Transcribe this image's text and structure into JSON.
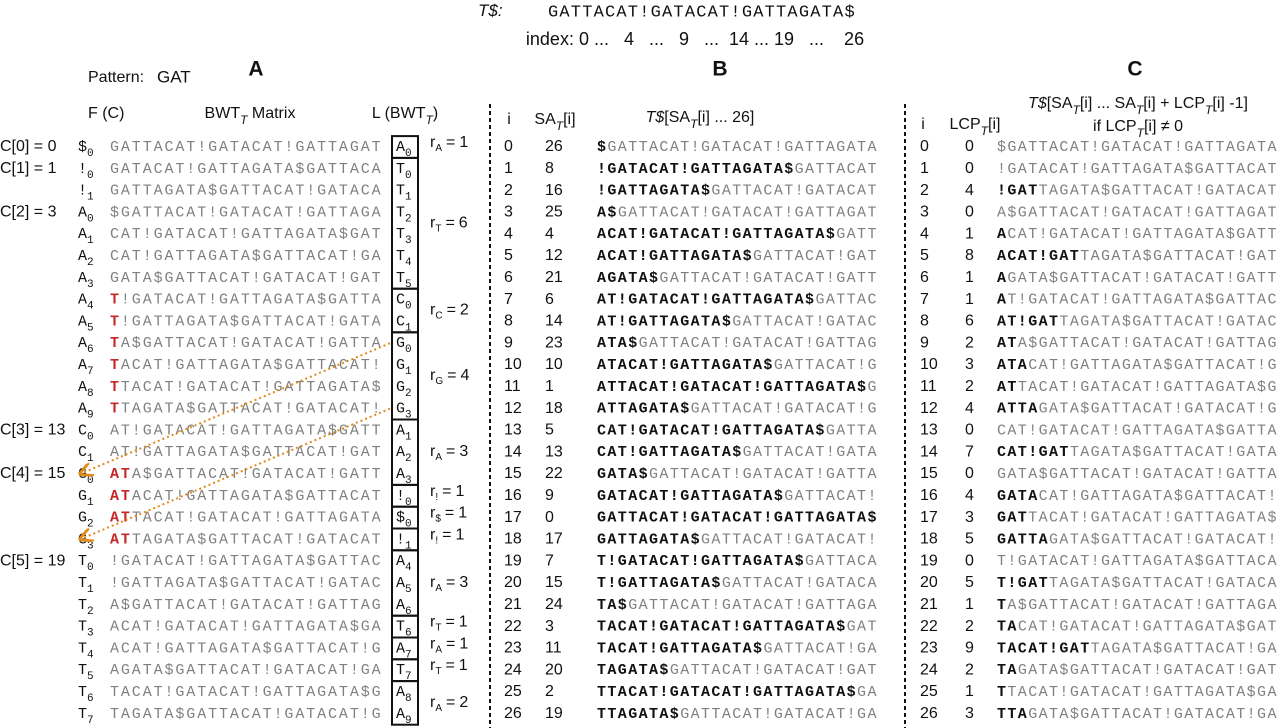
{
  "header": {
    "label": [
      {
        "text": "T$:",
        "italic": true
      }
    ],
    "text": "GATTACAT!GATACAT!GATTAGATA$",
    "index": "index: 0 ...   4   ...   9   ...  14 ... 19   ...    26"
  },
  "panel_a": {
    "letter": "A",
    "pattern_label": "Pattern:",
    "pattern": "GAT",
    "pattern_color": "#d9541e",
    "match_color": "#c62828",
    "headers": [
      [
        {
          "text": "F (C)"
        }
      ],
      [
        {
          "text": "BWT"
        },
        {
          "text": "T",
          "sub": true
        },
        {
          "text": " Matrix"
        }
      ],
      [
        {
          "text": "L (BWT"
        },
        {
          "text": "T",
          "sub": true
        },
        {
          "text": ")"
        }
      ]
    ],
    "run_symbol": "r",
    "equals": "=",
    "runs": [
      {
        "sub": "A",
        "count": 1
      },
      {
        "sub": "T",
        "count": 6
      },
      {
        "sub": "C",
        "count": 2
      },
      {
        "sub": "G",
        "count": 4
      },
      {
        "sub": "A",
        "count": 3
      },
      {
        "sub": "!",
        "count": 1
      },
      {
        "sub": "$",
        "count": 1
      },
      {
        "sub": "!",
        "count": 1
      },
      {
        "sub": "A",
        "count": 3
      },
      {
        "sub": "T",
        "count": 1
      },
      {
        "sub": "A",
        "count": 1
      },
      {
        "sub": "T",
        "count": 1
      },
      {
        "sub": "A",
        "count": 2
      }
    ],
    "arrow_color": "#e08a1a",
    "rows": [
      {
        "c": "C[0] = 0",
        "f": "$",
        "fs": "0",
        "rest": "GATTACAT!GATACAT!GATTAGAT",
        "l": "A",
        "ls": "0"
      },
      {
        "c": "C[1] = 1",
        "f": "!",
        "fs": "0",
        "rest": "GATACAT!GATTAGATA$GATTACA",
        "l": "T",
        "ls": "0"
      },
      {
        "f": "!",
        "fs": "1",
        "rest": "GATTAGATA$GATTACAT!GATACA",
        "l": "T",
        "ls": "1"
      },
      {
        "c": "C[2] = 3",
        "f": "A",
        "fs": "0",
        "rest": "$GATTACAT!GATACAT!GATTAGA",
        "l": "T",
        "ls": "2"
      },
      {
        "f": "A",
        "fs": "1",
        "rest": "CAT!GATACAT!GATTAGATA$GAT",
        "l": "T",
        "ls": "3"
      },
      {
        "f": "A",
        "fs": "2",
        "rest": "CAT!GATTAGATA$GATTACAT!GA",
        "l": "T",
        "ls": "4"
      },
      {
        "f": "A",
        "fs": "3",
        "rest": "GATA$GATTACAT!GATACAT!GAT",
        "l": "T",
        "ls": "5"
      },
      {
        "f": "A",
        "fs": "4",
        "f_color": "#c62828",
        "match": "T",
        "rest": "!GATACAT!GATTAGATA$GATTA",
        "l": "C",
        "ls": "0"
      },
      {
        "f": "A",
        "fs": "5",
        "f_color": "#c62828",
        "match": "T",
        "rest": "!GATTAGATA$GATTACAT!GATA",
        "l": "C",
        "ls": "1"
      },
      {
        "f": "A",
        "fs": "6",
        "f_color": "#c62828",
        "match": "T",
        "rest": "A$GATTACAT!GATACAT!GATTA",
        "l": "G",
        "ls": "0",
        "l_color": "#e08a1a"
      },
      {
        "f": "A",
        "fs": "7",
        "f_color": "#c62828",
        "match": "T",
        "rest": "ACAT!GATTAGATA$GATTACAT!",
        "l": "G",
        "ls": "1",
        "l_color": "#e08a1a"
      },
      {
        "f": "A",
        "fs": "8",
        "f_color": "#c62828",
        "match": "T",
        "rest": "TACAT!GATACAT!GATTAGATA$",
        "l": "G",
        "ls": "2",
        "l_color": "#e08a1a"
      },
      {
        "f": "A",
        "fs": "9",
        "f_color": "#c62828",
        "match": "T",
        "rest": "TAGATA$GATTACAT!GATACAT!",
        "l": "G",
        "ls": "3",
        "l_color": "#e08a1a"
      },
      {
        "c": "C[3] = 13",
        "f": "C",
        "fs": "0",
        "rest": "AT!GATACAT!GATTAGATA$GATT",
        "l": "A",
        "ls": "1"
      },
      {
        "f": "C",
        "fs": "1",
        "rest": "AT!GATTAGATA$GATTACAT!GAT",
        "l": "A",
        "ls": "2"
      },
      {
        "c": "C[4] = 15",
        "f": "G",
        "fs": "0",
        "f_color": "#e08a1a",
        "match": "AT",
        "rest": "A$GATTACAT!GATACAT!GATT",
        "l": "A",
        "ls": "3"
      },
      {
        "f": "G",
        "fs": "1",
        "f_color": "#e08a1a",
        "match": "AT",
        "rest": "ACAT!GATTAGATA$GATTACAT",
        "l": "!",
        "ls": "0"
      },
      {
        "f": "G",
        "fs": "2",
        "f_color": "#e08a1a",
        "match": "AT",
        "rest": "TACAT!GATACAT!GATTAGATA",
        "l": "$",
        "ls": "0"
      },
      {
        "f": "G",
        "fs": "3",
        "f_color": "#e08a1a",
        "match": "AT",
        "rest": "TAGATA$GATTACAT!GATACAT",
        "l": "!",
        "ls": "1"
      },
      {
        "c": "C[5] = 19",
        "f": "T",
        "fs": "0",
        "rest": "!GATACAT!GATTAGATA$GATTAC",
        "l": "A",
        "ls": "4"
      },
      {
        "f": "T",
        "fs": "1",
        "rest": "!GATTAGATA$GATTACAT!GATAC",
        "l": "A",
        "ls": "5"
      },
      {
        "f": "T",
        "fs": "2",
        "rest": "A$GATTACAT!GATACAT!GATTAG",
        "l": "A",
        "ls": "6"
      },
      {
        "f": "T",
        "fs": "3",
        "rest": "ACAT!GATACAT!GATTAGATA$GA",
        "l": "T",
        "ls": "6"
      },
      {
        "f": "T",
        "fs": "4",
        "rest": "ACAT!GATTAGATA$GATTACAT!G",
        "l": "A",
        "ls": "7"
      },
      {
        "f": "T",
        "fs": "5",
        "rest": "AGATA$GATTACAT!GATACAT!GA",
        "l": "T",
        "ls": "7"
      },
      {
        "f": "T",
        "fs": "6",
        "rest": "TACAT!GATACAT!GATTAGATA$G",
        "l": "A",
        "ls": "8"
      },
      {
        "f": "T",
        "fs": "7",
        "rest": "TAGATA$GATTACAT!GATACAT!G",
        "l": "A",
        "ls": "9"
      }
    ]
  },
  "panel_b": {
    "letter": "B",
    "headers": [
      [
        {
          "text": "i"
        }
      ],
      [
        {
          "text": "SA"
        },
        {
          "text": "T",
          "sub": true
        },
        {
          "text": "[i]"
        }
      ],
      [
        {
          "text": "T$",
          "italic": true
        },
        {
          "text": "[SA"
        },
        {
          "text": "T",
          "sub": true
        },
        {
          "text": "[i] ... 26]"
        }
      ]
    ],
    "rows": [
      {
        "i": 0,
        "sa": 26,
        "bold": "$",
        "rest": "GATTACAT!GATACAT!GATTAGATA"
      },
      {
        "i": 1,
        "sa": 8,
        "bold": "!GATACAT!GATTAGATA$",
        "rest": "GATTACAT"
      },
      {
        "i": 2,
        "sa": 16,
        "bold": "!GATTAGATA$",
        "rest": "GATTACAT!GATACAT"
      },
      {
        "i": 3,
        "sa": 25,
        "bold": "A$",
        "rest": "GATTACAT!GATACAT!GATTAGAT"
      },
      {
        "i": 4,
        "sa": 4,
        "bold": "ACAT!GATACAT!GATTAGATA$",
        "rest": "GATT"
      },
      {
        "i": 5,
        "sa": 12,
        "bold": "ACAT!GATTAGATA$",
        "rest": "GATTACAT!GAT"
      },
      {
        "i": 6,
        "sa": 21,
        "bold": "AGATA$",
        "rest": "GATTACAT!GATACAT!GATT"
      },
      {
        "i": 7,
        "sa": 6,
        "bold": "AT!GATACAT!GATTAGATA$",
        "rest": "GATTAC"
      },
      {
        "i": 8,
        "sa": 14,
        "bold": "AT!GATTAGATA$",
        "rest": "GATTACAT!GATAC"
      },
      {
        "i": 9,
        "sa": 23,
        "bold": "ATA$",
        "rest": "GATTACAT!GATACAT!GATTAG"
      },
      {
        "i": 10,
        "sa": 10,
        "bold": "ATACAT!GATTAGATA$",
        "rest": "GATTACAT!G"
      },
      {
        "i": 11,
        "sa": 1,
        "bold": "ATTACAT!GATACAT!GATTAGATA$",
        "rest": "G"
      },
      {
        "i": 12,
        "sa": 18,
        "bold": "ATTAGATA$",
        "rest": "GATTACAT!GATACAT!G"
      },
      {
        "i": 13,
        "sa": 5,
        "bold": "CAT!GATACAT!GATTAGATA$",
        "rest": "GATTA"
      },
      {
        "i": 14,
        "sa": 13,
        "bold": "CAT!GATTAGATA$",
        "rest": "GATTACAT!GATA"
      },
      {
        "i": 15,
        "sa": 22,
        "bold": "GATA$",
        "rest": "GATTACAT!GATACAT!GATTA"
      },
      {
        "i": 16,
        "sa": 9,
        "bold": "GATACAT!GATTAGATA$",
        "rest": "GATTACAT!"
      },
      {
        "i": 17,
        "sa": 0,
        "bold": "GATTACAT!GATACAT!GATTAGATA$"
      },
      {
        "i": 18,
        "sa": 17,
        "bold": "GATTAGATA$",
        "rest": "GATTACAT!GATACAT!"
      },
      {
        "i": 19,
        "sa": 7,
        "bold": "T!GATACAT!GATTAGATA$",
        "rest": "GATTACA"
      },
      {
        "i": 20,
        "sa": 15,
        "bold": "T!GATTAGATA$",
        "rest": "GATTACAT!GATACA"
      },
      {
        "i": 21,
        "sa": 24,
        "bold": "TA$",
        "rest": "GATTACAT!GATACAT!GATTAGA"
      },
      {
        "i": 22,
        "sa": 3,
        "bold": "TACAT!GATACAT!GATTAGATA$",
        "rest": "GAT"
      },
      {
        "i": 23,
        "sa": 11,
        "bold": "TACAT!GATTAGATA$",
        "rest": "GATTACAT!GA"
      },
      {
        "i": 24,
        "sa": 20,
        "bold": "TAGATA$",
        "rest": "GATTACAT!GATACAT!GAT"
      },
      {
        "i": 25,
        "sa": 2,
        "bold": "TTACAT!GATACAT!GATTAGATA$",
        "rest": "GA"
      },
      {
        "i": 26,
        "sa": 19,
        "bold": "TTAGATA$",
        "rest": "GATTACAT!GATACAT!GA"
      }
    ]
  },
  "panel_c": {
    "letter": "C",
    "headers": [
      [
        {
          "text": "i"
        }
      ],
      [
        {
          "text": "LCP"
        },
        {
          "text": "T",
          "sub": true
        },
        {
          "text": "[i]"
        }
      ]
    ],
    "title": [
      [
        {
          "text": "T$",
          "italic": true
        },
        {
          "text": "[SA"
        },
        {
          "text": "T",
          "sub": true
        },
        {
          "text": "[i] ... SA"
        },
        {
          "text": "T",
          "sub": true
        },
        {
          "text": "[i] + LCP"
        },
        {
          "text": "T",
          "sub": true
        },
        {
          "text": "[i] -1]"
        }
      ],
      [
        {
          "text": "if LCP"
        },
        {
          "text": "T",
          "sub": true
        },
        {
          "text": "[i] ≠ 0"
        }
      ]
    ],
    "rows": [
      {
        "i": 0,
        "lcp": 0,
        "rest": "$GATTACAT!GATACAT!GATTAGATA"
      },
      {
        "i": 1,
        "lcp": 0,
        "rest": "!GATACAT!GATTAGATA$GATTACAT"
      },
      {
        "i": 2,
        "lcp": 4,
        "bold": "!GAT",
        "rest": "TAGATA$GATTACAT!GATACAT"
      },
      {
        "i": 3,
        "lcp": 0,
        "rest": "A$GATTACAT!GATACAT!GATTAGAT"
      },
      {
        "i": 4,
        "lcp": 1,
        "bold": "A",
        "rest": "CAT!GATACAT!GATTAGATA$GATT"
      },
      {
        "i": 5,
        "lcp": 8,
        "bold": "ACAT!GAT",
        "rest": "TAGATA$GATTACAT!GAT"
      },
      {
        "i": 6,
        "lcp": 1,
        "bold": "A",
        "rest": "GATA$GATTACAT!GATACAT!GATT"
      },
      {
        "i": 7,
        "lcp": 1,
        "bold": "A",
        "rest": "T!GATACAT!GATTAGATA$GATTAC"
      },
      {
        "i": 8,
        "lcp": 6,
        "bold": "AT!GAT",
        "rest": "TAGATA$GATTACAT!GATAC"
      },
      {
        "i": 9,
        "lcp": 2,
        "bold": "AT",
        "rest": "A$GATTACAT!GATACAT!GATTAG"
      },
      {
        "i": 10,
        "lcp": 3,
        "bold": "ATA",
        "rest": "CAT!GATTAGATA$GATTACAT!G"
      },
      {
        "i": 11,
        "lcp": 2,
        "bold": "AT",
        "rest": "TACAT!GATACAT!GATTAGATA$G"
      },
      {
        "i": 12,
        "lcp": 4,
        "bold": "ATTA",
        "rest": "GATA$GATTACAT!GATACAT!G"
      },
      {
        "i": 13,
        "lcp": 0,
        "rest": "CAT!GATACAT!GATTAGATA$GATTA"
      },
      {
        "i": 14,
        "lcp": 7,
        "bold": "CAT!GAT",
        "rest": "TAGATA$GATTACAT!GATA"
      },
      {
        "i": 15,
        "lcp": 0,
        "rest": "GATA$GATTACAT!GATACAT!GATTA"
      },
      {
        "i": 16,
        "lcp": 4,
        "bold": "GATA",
        "rest": "CAT!GATTAGATA$GATTACAT!"
      },
      {
        "i": 17,
        "lcp": 3,
        "bold": "GAT",
        "rest": "TACAT!GATACAT!GATTAGATA$"
      },
      {
        "i": 18,
        "lcp": 5,
        "bold": "GATTA",
        "rest": "GATA$GATTACAT!GATACAT!"
      },
      {
        "i": 19,
        "lcp": 0,
        "rest": "T!GATACAT!GATTAGATA$GATTACA"
      },
      {
        "i": 20,
        "lcp": 5,
        "bold": "T!GAT",
        "rest": "TAGATA$GATTACAT!GATACA"
      },
      {
        "i": 21,
        "lcp": 1,
        "bold": "T",
        "rest": "A$GATTACAT!GATACAT!GATTAGA"
      },
      {
        "i": 22,
        "lcp": 2,
        "bold": "TA",
        "rest": "CAT!GATACAT!GATTAGATA$GAT"
      },
      {
        "i": 23,
        "lcp": 9,
        "bold": "TACAT!GAT",
        "rest": "TAGATA$GATTACAT!GA"
      },
      {
        "i": 24,
        "lcp": 2,
        "bold": "TA",
        "rest": "GATA$GATTACAT!GATACAT!GAT"
      },
      {
        "i": 25,
        "lcp": 1,
        "bold": "T",
        "rest": "TACAT!GATACAT!GATTAGATA$GA"
      },
      {
        "i": 26,
        "lcp": 3,
        "bold": "TTA",
        "rest": "GATA$GATTACAT!GATACAT!GA"
      }
    ]
  }
}
